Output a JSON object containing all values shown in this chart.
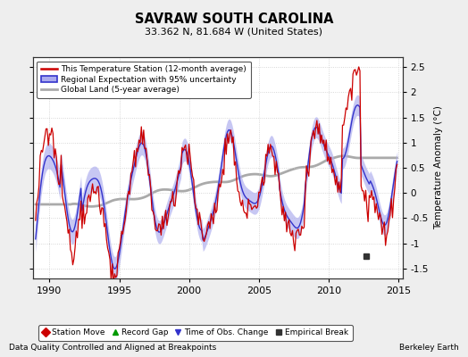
{
  "title": "SAVRAW SOUTH CAROLINA",
  "subtitle": "33.362 N, 81.684 W (United States)",
  "ylabel": "Temperature Anomaly (°C)",
  "xlabel_left": "Data Quality Controlled and Aligned at Breakpoints",
  "xlabel_right": "Berkeley Earth",
  "ylim": [
    -1.7,
    2.7
  ],
  "xlim": [
    1988.8,
    2015.3
  ],
  "yticks": [
    -1.5,
    -1.0,
    -0.5,
    0.0,
    0.5,
    1.0,
    1.5,
    2.0,
    2.5
  ],
  "xticks": [
    1990,
    1995,
    2000,
    2005,
    2010,
    2015
  ],
  "legend_items": [
    "This Temperature Station (12-month average)",
    "Regional Expectation with 95% uncertainty",
    "Global Land (5-year average)"
  ],
  "station_color": "#cc0000",
  "regional_color": "#3333cc",
  "regional_fill_color": "#aaaaee",
  "global_color": "#aaaaaa",
  "background_color": "#eeeeee",
  "plot_bg_color": "#ffffff",
  "empirical_break_x": 2012.7,
  "empirical_break_y": -1.25,
  "legend_marker_colors": {
    "station_move": "#cc0000",
    "record_gap": "#009900",
    "obs_change": "#3333cc",
    "empirical_break": "#333333"
  }
}
